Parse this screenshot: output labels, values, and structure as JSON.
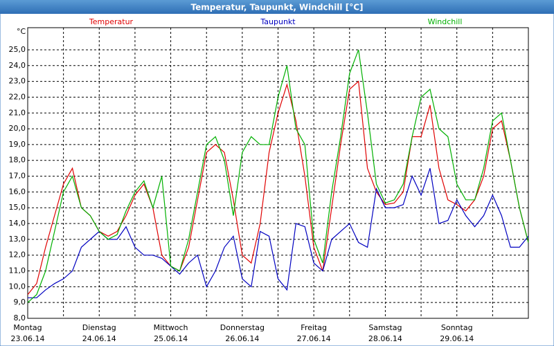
{
  "window_title": "Temperatur, Taupunkt, Windchill [°C]",
  "chart_data": {
    "type": "line",
    "ylabel": "°C",
    "x": [
      0,
      3,
      6,
      9,
      12,
      15,
      18,
      21,
      24,
      27,
      30,
      33,
      36,
      39,
      42,
      45,
      48,
      51,
      54,
      57,
      60,
      63,
      66,
      69,
      72,
      75,
      78,
      81,
      84,
      87,
      90,
      93,
      96,
      99,
      102,
      105,
      108,
      111,
      114,
      117,
      120,
      123,
      126,
      129,
      132,
      135,
      138,
      141,
      144,
      147,
      150,
      153,
      156,
      159,
      162,
      165,
      168
    ],
    "series": [
      {
        "name": "Temperatur",
        "color": "#e00000",
        "values": [
          9.5,
          10.2,
          12.5,
          14.5,
          16.5,
          17.5,
          15.0,
          14.5,
          13.5,
          13.2,
          13.5,
          14.5,
          15.8,
          16.5,
          15.0,
          12.0,
          11.3,
          11.0,
          12.5,
          15.5,
          18.5,
          19.0,
          18.5,
          15.5,
          12.0,
          11.5,
          14.0,
          18.5,
          21.0,
          22.8,
          20.5,
          17.0,
          12.5,
          11.0,
          15.0,
          19.0,
          22.5,
          23.0,
          17.5,
          16.0,
          15.2,
          15.3,
          16.0,
          19.5,
          19.5,
          21.5,
          17.5,
          15.5,
          15.2,
          14.8,
          15.5,
          17.0,
          20.0,
          20.5,
          18.0,
          15.0,
          12.8
        ]
      },
      {
        "name": "Taupunkt",
        "color": "#0000c0",
        "values": [
          9.3,
          9.3,
          9.8,
          10.2,
          10.5,
          11.0,
          12.5,
          13.0,
          13.5,
          13.0,
          13.0,
          13.8,
          12.5,
          12.0,
          12.0,
          11.8,
          11.3,
          10.8,
          11.5,
          12.0,
          10.0,
          11.0,
          12.5,
          13.2,
          10.5,
          10.0,
          13.5,
          13.2,
          10.5,
          9.8,
          14.0,
          13.8,
          11.5,
          11.0,
          13.0,
          13.5,
          14.0,
          12.8,
          12.5,
          16.2,
          15.0,
          15.0,
          15.2,
          17.0,
          15.8,
          17.5,
          14.0,
          14.2,
          15.5,
          14.5,
          13.8,
          14.5,
          15.8,
          14.5,
          12.5,
          12.5,
          13.2
        ]
      },
      {
        "name": "Windchill",
        "color": "#00b000",
        "values": [
          9.0,
          9.5,
          11.0,
          13.5,
          16.0,
          17.0,
          15.0,
          14.5,
          13.5,
          13.0,
          13.3,
          14.8,
          16.0,
          16.7,
          15.0,
          17.0,
          11.3,
          11.0,
          13.0,
          16.0,
          19.0,
          19.5,
          18.0,
          14.5,
          18.5,
          19.5,
          19.0,
          19.0,
          22.0,
          24.0,
          20.0,
          19.0,
          13.0,
          11.5,
          16.0,
          19.5,
          23.5,
          25.0,
          21.0,
          16.5,
          15.3,
          15.5,
          16.5,
          19.5,
          22.0,
          22.5,
          20.0,
          19.5,
          16.5,
          15.5,
          15.5,
          17.5,
          20.5,
          21.0,
          18.0,
          15.0,
          12.8
        ]
      }
    ],
    "xlim": [
      0,
      168
    ],
    "xticks": [
      {
        "value": 0,
        "label": "Montag",
        "date": "23.06.14"
      },
      {
        "value": 24,
        "label": "Dienstag",
        "date": "24.06.14"
      },
      {
        "value": 48,
        "label": "Mittwoch",
        "date": "25.06.14"
      },
      {
        "value": 72,
        "label": "Donnerstag",
        "date": "26.06.14"
      },
      {
        "value": 96,
        "label": "Freitag",
        "date": "27.06.14"
      },
      {
        "value": 120,
        "label": "Samstag",
        "date": "28.06.14"
      },
      {
        "value": 144,
        "label": "Sonntag",
        "date": "29.06.14"
      }
    ],
    "xminor": [
      12,
      36,
      60,
      84,
      108,
      132,
      156
    ],
    "ylim": [
      8,
      26.4
    ],
    "yticks": [
      {
        "value": 8,
        "label": "8,0"
      },
      {
        "value": 9,
        "label": "9,0"
      },
      {
        "value": 10,
        "label": "10,0"
      },
      {
        "value": 11,
        "label": "11,0"
      },
      {
        "value": 12,
        "label": "12,0"
      },
      {
        "value": 13,
        "label": "13,0"
      },
      {
        "value": 14,
        "label": "14,0"
      },
      {
        "value": 15,
        "label": "15,0"
      },
      {
        "value": 16,
        "label": "16,0"
      },
      {
        "value": 17,
        "label": "17,0"
      },
      {
        "value": 18,
        "label": "18,0"
      },
      {
        "value": 19,
        "label": "19,0"
      },
      {
        "value": 20,
        "label": "20,0"
      },
      {
        "value": 21,
        "label": "21,0"
      },
      {
        "value": 22,
        "label": "22,0"
      },
      {
        "value": 23,
        "label": "23,0"
      },
      {
        "value": 24,
        "label": "24,0"
      },
      {
        "value": 25,
        "label": "25,0"
      }
    ],
    "grid": true
  }
}
